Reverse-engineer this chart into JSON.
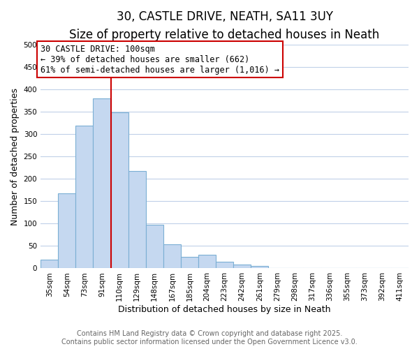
{
  "title": "30, CASTLE DRIVE, NEATH, SA11 3UY",
  "subtitle": "Size of property relative to detached houses in Neath",
  "xlabel": "Distribution of detached houses by size in Neath",
  "ylabel": "Number of detached properties",
  "bar_color": "#c5d8f0",
  "bar_edge_color": "#7bafd4",
  "background_color": "#ffffff",
  "grid_color": "#c0d0e8",
  "annotation_box_color": "#ffffff",
  "annotation_box_edge": "#cc0000",
  "vline_color": "#cc0000",
  "categories": [
    "35sqm",
    "54sqm",
    "73sqm",
    "91sqm",
    "110sqm",
    "129sqm",
    "148sqm",
    "167sqm",
    "185sqm",
    "204sqm",
    "223sqm",
    "242sqm",
    "261sqm",
    "279sqm",
    "298sqm",
    "317sqm",
    "336sqm",
    "355sqm",
    "373sqm",
    "392sqm",
    "411sqm"
  ],
  "values": [
    19,
    167,
    318,
    379,
    348,
    217,
    97,
    54,
    26,
    30,
    14,
    8,
    5,
    0,
    0,
    0,
    0,
    0,
    0,
    0,
    0
  ],
  "ylim": [
    0,
    500
  ],
  "yticks": [
    0,
    50,
    100,
    150,
    200,
    250,
    300,
    350,
    400,
    450,
    500
  ],
  "vline_x": 3.5,
  "annotation_line1": "30 CASTLE DRIVE: 100sqm",
  "annotation_line2": "← 39% of detached houses are smaller (662)",
  "annotation_line3": "61% of semi-detached houses are larger (1,016) →",
  "footer_line1": "Contains HM Land Registry data © Crown copyright and database right 2025.",
  "footer_line2": "Contains public sector information licensed under the Open Government Licence v3.0.",
  "title_fontsize": 12,
  "subtitle_fontsize": 10,
  "label_fontsize": 9,
  "tick_fontsize": 7.5,
  "annotation_fontsize": 8.5,
  "footer_fontsize": 7
}
